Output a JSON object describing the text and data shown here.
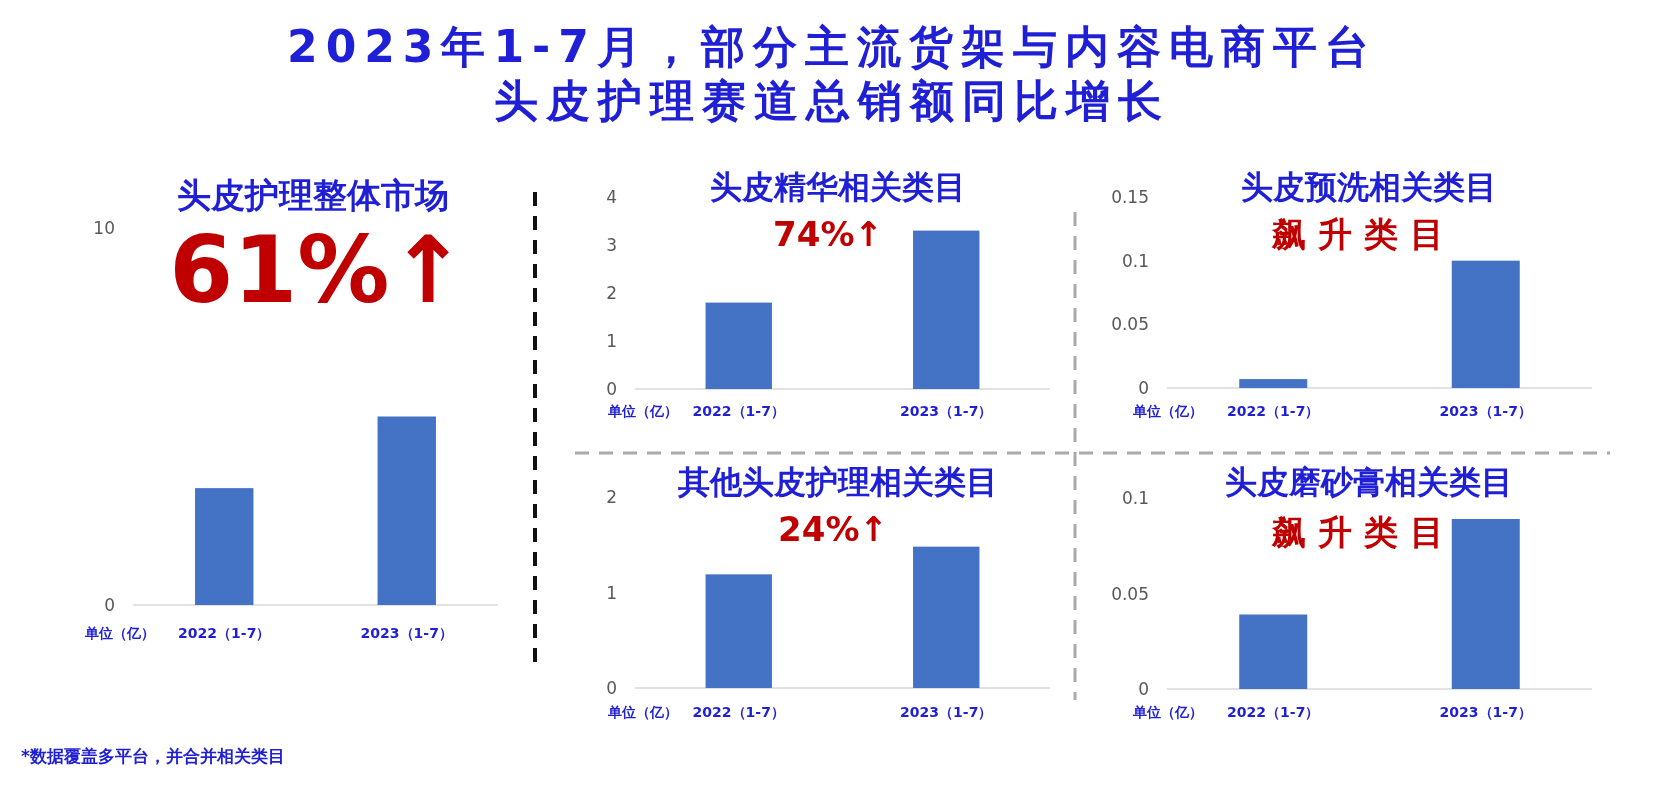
{
  "chart_data": [
    {
      "type": "bar",
      "title": "2023年1-7月，部分主流货架与内容电商平台头皮护理赛道总销额同比增长",
      "subtitle": "头皮护理整体市场",
      "categories": [
        "2022（1-7）",
        "2023（1-7）"
      ],
      "values": [
        3.1,
        5.0
      ],
      "color": "#4472c4",
      "ylim": [
        0,
        10
      ],
      "yticks": [
        0,
        10
      ],
      "annotations": [
        "61%↑",
        "单位（亿）",
        "*数据覆盖多平台，并合并相关类目"
      ]
    },
    {
      "type": "bar",
      "title": "头皮精华相关类目",
      "categories": [
        "2022（1-7）",
        "2023（1-7）"
      ],
      "values": [
        1.8,
        3.3
      ],
      "color": "#4472c4",
      "ylim": [
        0,
        4
      ],
      "yticks": [
        0,
        1,
        2,
        3,
        4
      ],
      "annotations": [
        "74%↑",
        "单位（亿）"
      ]
    },
    {
      "type": "bar",
      "title": "头皮预洗相关类目",
      "categories": [
        "2022（1-7）",
        "2023（1-7）"
      ],
      "values": [
        0.007,
        0.1
      ],
      "color": "#4472c4",
      "ylim": [
        0,
        0.15
      ],
      "yticks": [
        0,
        0.05,
        0.1,
        0.15
      ],
      "annotations": [
        "飙 升 类 目",
        "单位（亿）"
      ]
    },
    {
      "type": "bar",
      "title": "其他头皮护理相关类目",
      "categories": [
        "2022（1-7）",
        "2023（1-7）"
      ],
      "values": [
        1.19,
        1.48
      ],
      "color": "#4472c4",
      "ylim": [
        0,
        2
      ],
      "yticks": [
        0,
        1,
        2
      ],
      "annotations": [
        "24%↑",
        "单位（亿）"
      ]
    },
    {
      "type": "bar",
      "title": "头皮磨砂膏相关类目",
      "categories": [
        "2022（1-7）",
        "2023（1-7）"
      ],
      "values": [
        0.039,
        0.089
      ],
      "color": "#4472c4",
      "ylim": [
        0,
        0.1
      ],
      "yticks": [
        0,
        0.05,
        0.1
      ],
      "annotations": [
        "飙 升 类 目",
        "单位（亿）"
      ]
    }
  ]
}
